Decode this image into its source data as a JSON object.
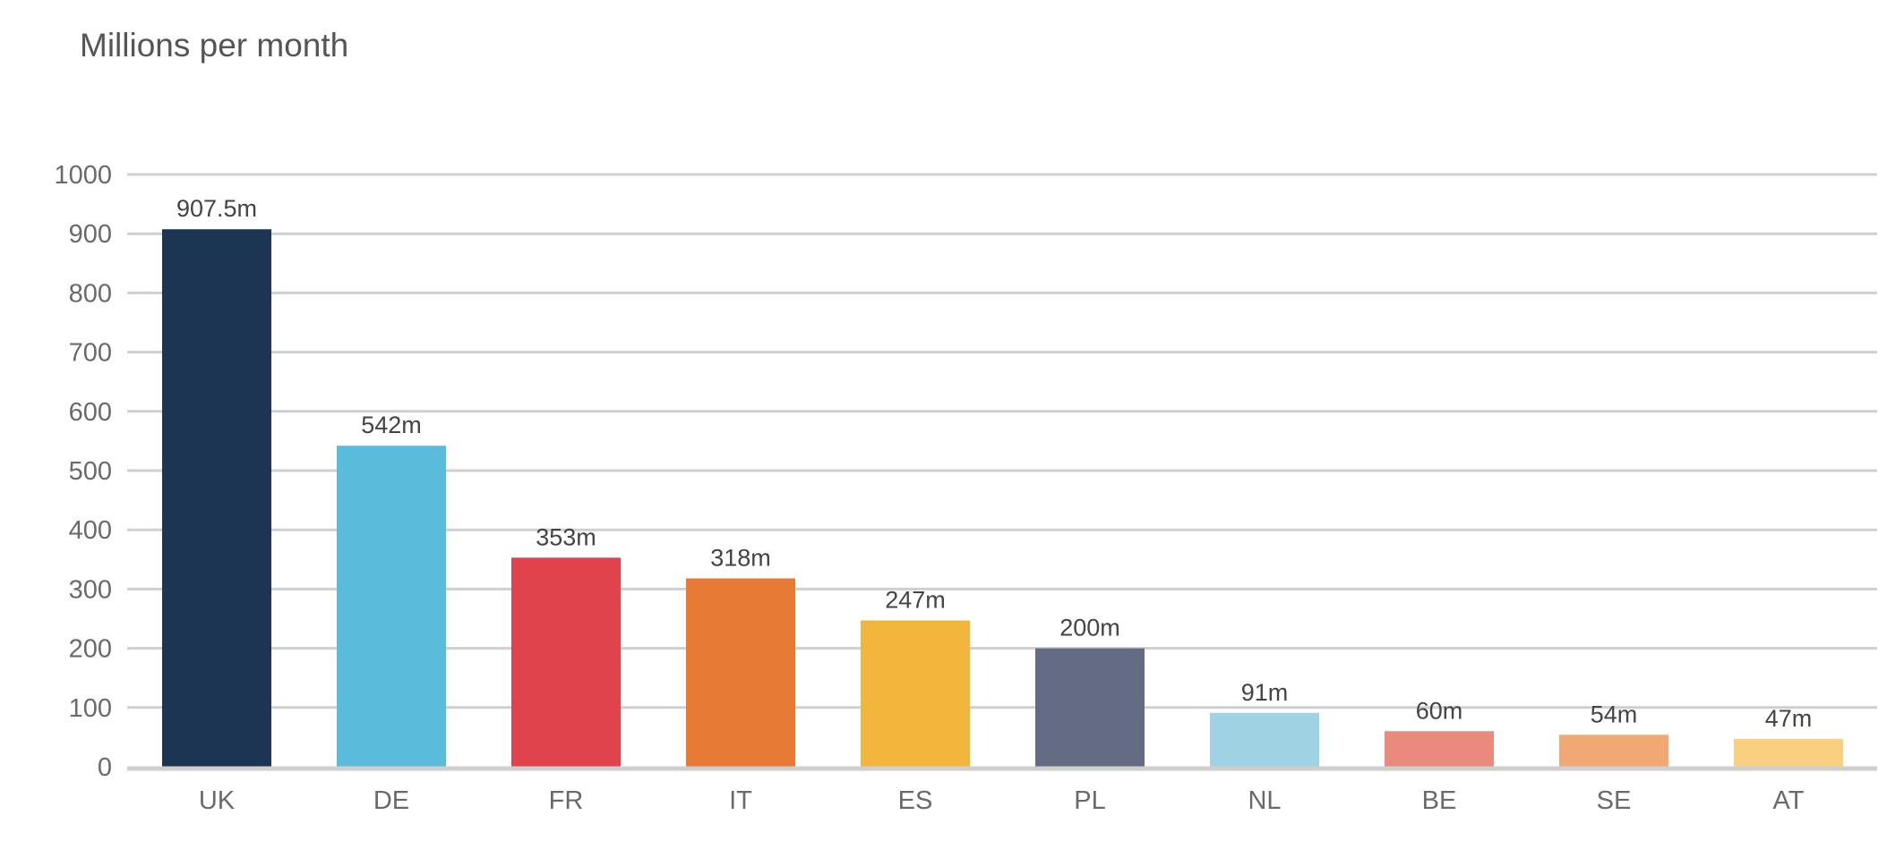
{
  "chart_data": {
    "type": "bar",
    "title": "Millions per month",
    "xlabel": "",
    "ylabel": "",
    "categories": [
      "UK",
      "DE",
      "FR",
      "IT",
      "ES",
      "PL",
      "NL",
      "BE",
      "SE",
      "AT"
    ],
    "values": [
      907.5,
      542,
      353,
      318,
      247,
      200,
      91,
      60,
      54,
      47
    ],
    "data_labels": [
      "907.5m",
      "542m",
      "353m",
      "318m",
      "247m",
      "200m",
      "91m",
      "60m",
      "54m",
      "47m"
    ],
    "colors": [
      "#1b3552",
      "#5bbbdb",
      "#e0434b",
      "#e77b35",
      "#f3b63c",
      "#636c82",
      "#9fd3e3",
      "#e98a7d",
      "#f0a874",
      "#f9cf80"
    ],
    "ylim": [
      0,
      1000
    ],
    "yticks": [
      0,
      100,
      200,
      300,
      400,
      500,
      600,
      700,
      800,
      900,
      1000
    ],
    "grid": true,
    "legend": "none"
  }
}
